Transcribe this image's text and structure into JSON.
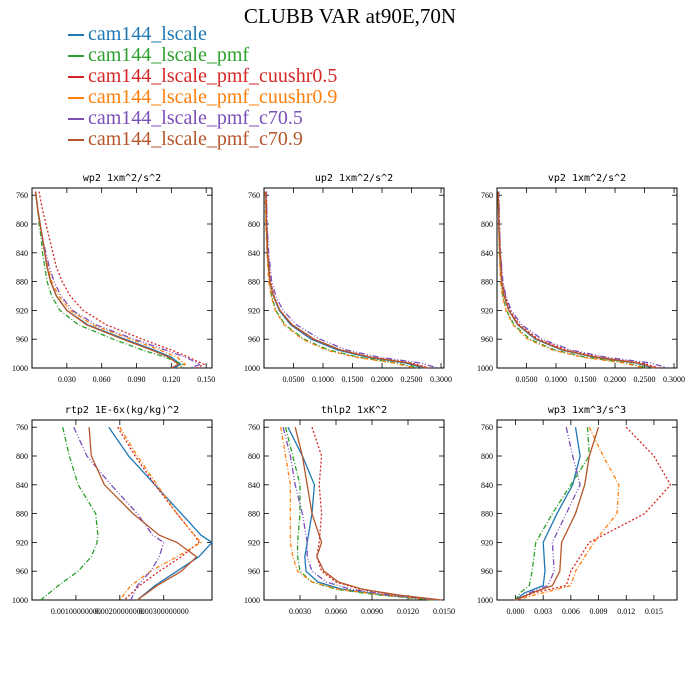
{
  "title": "CLUBB VAR at90E,70N",
  "legend": [
    {
      "name": "cam144_lscale",
      "color": "#1f77b4"
    },
    {
      "name": "cam144_lscale_pmf",
      "color": "#2ca02c"
    },
    {
      "name": "cam144_lscale_pmf_cuushr0.5",
      "color": "#d62728"
    },
    {
      "name": "cam144_lscale_pmf_cuushr0.9",
      "color": "#ff7f0e"
    },
    {
      "name": "cam144_lscale_pmf_c70.5",
      "color": "#7b4fb8"
    },
    {
      "name": "cam144_lscale_pmf_c70.9",
      "color": "#b5562a"
    }
  ],
  "chart_data": [
    {
      "type": "line",
      "title": "wp2  1xm^2/s^2",
      "xlim": [
        0.0,
        0.155
      ],
      "ylim": [
        1000,
        750
      ],
      "xticks": [
        0.03,
        0.06,
        0.09,
        0.12,
        0.15
      ],
      "xticklabels": [
        "0.030",
        "0.060",
        "0.090",
        "0.120",
        "0.150"
      ],
      "yticks": [
        760,
        800,
        840,
        880,
        920,
        960,
        1000
      ],
      "y": [
        755,
        780,
        800,
        820,
        840,
        860,
        880,
        900,
        920,
        940,
        960,
        975,
        985,
        995,
        1000
      ],
      "series": [
        {
          "name": "cam144_lscale",
          "values": [
            0.003,
            0.005,
            0.007,
            0.009,
            0.011,
            0.013,
            0.016,
            0.021,
            0.03,
            0.048,
            0.08,
            0.105,
            0.12,
            0.128,
            0.122
          ]
        },
        {
          "name": "cam144_lscale_pmf",
          "values": [
            0.003,
            0.005,
            0.006,
            0.008,
            0.009,
            0.011,
            0.013,
            0.017,
            0.024,
            0.04,
            0.07,
            0.095,
            0.115,
            0.13,
            0.128
          ]
        },
        {
          "name": "cam144_lscale_pmf_cuushr0.5",
          "values": [
            0.006,
            0.009,
            0.012,
            0.015,
            0.018,
            0.021,
            0.026,
            0.033,
            0.044,
            0.064,
            0.095,
            0.12,
            0.135,
            0.148,
            0.142
          ]
        },
        {
          "name": "cam144_lscale_pmf_cuushr0.9",
          "values": [
            0.003,
            0.005,
            0.007,
            0.009,
            0.011,
            0.014,
            0.017,
            0.023,
            0.033,
            0.052,
            0.085,
            0.11,
            0.125,
            0.132,
            0.126
          ]
        },
        {
          "name": "cam144_lscale_pmf_c70.5",
          "values": [
            0.003,
            0.005,
            0.007,
            0.009,
            0.012,
            0.015,
            0.019,
            0.025,
            0.035,
            0.055,
            0.088,
            0.115,
            0.132,
            0.145,
            0.136
          ]
        },
        {
          "name": "cam144_lscale_pmf_c70.9",
          "values": [
            0.003,
            0.005,
            0.007,
            0.009,
            0.011,
            0.013,
            0.016,
            0.021,
            0.03,
            0.047,
            0.078,
            0.103,
            0.118,
            0.126,
            0.12
          ]
        }
      ]
    },
    {
      "type": "line",
      "title": "up2  1xm^2/s^2",
      "xlim": [
        0.0,
        0.305
      ],
      "ylim": [
        1000,
        750
      ],
      "xticks": [
        0.05,
        0.1,
        0.15,
        0.2,
        0.25,
        0.3
      ],
      "xticklabels": [
        "0.0500",
        "0.1000",
        "0.1500",
        "0.2000",
        "0.2500",
        "0.3000"
      ],
      "yticks": [
        760,
        800,
        840,
        880,
        920,
        960,
        1000
      ],
      "y": [
        755,
        800,
        840,
        880,
        900,
        920,
        940,
        960,
        975,
        985,
        993,
        1000
      ],
      "series": [
        {
          "name": "cam144_lscale",
          "values": [
            0.003,
            0.004,
            0.006,
            0.01,
            0.016,
            0.026,
            0.045,
            0.08,
            0.125,
            0.175,
            0.24,
            0.27
          ]
        },
        {
          "name": "cam144_lscale_pmf",
          "values": [
            0.003,
            0.004,
            0.006,
            0.009,
            0.013,
            0.02,
            0.036,
            0.068,
            0.11,
            0.16,
            0.225,
            0.26
          ]
        },
        {
          "name": "cam144_lscale_pmf_cuushr0.5",
          "values": [
            0.004,
            0.005,
            0.007,
            0.011,
            0.017,
            0.027,
            0.047,
            0.083,
            0.13,
            0.182,
            0.25,
            0.28
          ]
        },
        {
          "name": "cam144_lscale_pmf_cuushr0.9",
          "values": [
            0.002,
            0.003,
            0.005,
            0.008,
            0.012,
            0.019,
            0.034,
            0.065,
            0.105,
            0.155,
            0.22,
            0.255
          ]
        },
        {
          "name": "cam144_lscale_pmf_c70.5",
          "values": [
            0.004,
            0.005,
            0.008,
            0.013,
            0.02,
            0.032,
            0.055,
            0.095,
            0.14,
            0.195,
            0.265,
            0.295
          ]
        },
        {
          "name": "cam144_lscale_pmf_c70.9",
          "values": [
            0.003,
            0.004,
            0.006,
            0.01,
            0.016,
            0.027,
            0.048,
            0.085,
            0.13,
            0.18,
            0.245,
            0.275
          ]
        }
      ]
    },
    {
      "type": "line",
      "title": "vp2  1xm^2/s^2",
      "xlim": [
        0.0,
        0.305
      ],
      "ylim": [
        1000,
        750
      ],
      "xticks": [
        0.05,
        0.1,
        0.15,
        0.2,
        0.25,
        0.3
      ],
      "xticklabels": [
        "0.0500",
        "0.1000",
        "0.1500",
        "0.2000",
        "0.2500",
        "0.3000"
      ],
      "yticks": [
        760,
        800,
        840,
        880,
        920,
        960,
        1000
      ],
      "y": [
        755,
        800,
        840,
        880,
        900,
        920,
        940,
        960,
        975,
        985,
        993,
        1000
      ],
      "series": [
        {
          "name": "cam144_lscale",
          "values": [
            0.002,
            0.003,
            0.005,
            0.008,
            0.012,
            0.02,
            0.035,
            0.065,
            0.11,
            0.165,
            0.235,
            0.265
          ]
        },
        {
          "name": "cam144_lscale_pmf",
          "values": [
            0.002,
            0.003,
            0.004,
            0.007,
            0.01,
            0.016,
            0.029,
            0.056,
            0.098,
            0.15,
            0.22,
            0.255
          ]
        },
        {
          "name": "cam144_lscale_pmf_cuushr0.5",
          "values": [
            0.003,
            0.004,
            0.006,
            0.009,
            0.014,
            0.022,
            0.038,
            0.07,
            0.118,
            0.175,
            0.245,
            0.275
          ]
        },
        {
          "name": "cam144_lscale_pmf_cuushr0.9",
          "values": [
            0.002,
            0.003,
            0.004,
            0.006,
            0.009,
            0.015,
            0.027,
            0.052,
            0.094,
            0.145,
            0.215,
            0.25
          ]
        },
        {
          "name": "cam144_lscale_pmf_c70.5",
          "values": [
            0.003,
            0.004,
            0.006,
            0.01,
            0.015,
            0.024,
            0.042,
            0.076,
            0.125,
            0.185,
            0.26,
            0.29
          ]
        },
        {
          "name": "cam144_lscale_pmf_c70.9",
          "values": [
            0.002,
            0.003,
            0.005,
            0.008,
            0.012,
            0.02,
            0.036,
            0.067,
            0.112,
            0.168,
            0.238,
            0.268
          ]
        }
      ]
    },
    {
      "type": "line",
      "title": "rtp2  1E-6x(kg/kg)^2",
      "xlim": [
        0.0,
        0.0041
      ],
      "ylim": [
        1000,
        750
      ],
      "xticks": [
        0.001,
        0.002,
        0.003
      ],
      "xticklabels": [
        "0.00100000000",
        "0.00200000000",
        "0.00300000000"
      ],
      "yticks": [
        760,
        800,
        840,
        880,
        920,
        960,
        1000
      ],
      "y": [
        760,
        800,
        840,
        880,
        910,
        920,
        940,
        960,
        980,
        1000
      ],
      "series": [
        {
          "name": "cam144_lscale",
          "values": [
            0.00175,
            0.0022,
            0.0028,
            0.0034,
            0.00385,
            0.0041,
            0.0038,
            0.0033,
            0.0028,
            0.0024
          ]
        },
        {
          "name": "cam144_lscale_pmf",
          "values": [
            0.0007,
            0.00085,
            0.00105,
            0.00145,
            0.0015,
            0.00148,
            0.00135,
            0.00105,
            0.0006,
            0.0002
          ]
        },
        {
          "name": "cam144_lscale_pmf_cuushr0.5",
          "values": [
            0.00195,
            0.00235,
            0.0028,
            0.0033,
            0.0037,
            0.0038,
            0.0034,
            0.0029,
            0.00245,
            0.0021
          ]
        },
        {
          "name": "cam144_lscale_pmf_cuushr0.9",
          "values": [
            0.002,
            0.0024,
            0.00285,
            0.0033,
            0.0037,
            0.00385,
            0.0033,
            0.0027,
            0.00225,
            0.002
          ]
        },
        {
          "name": "cam144_lscale_pmf_c70.5",
          "values": [
            0.00095,
            0.00125,
            0.0018,
            0.0024,
            0.00275,
            0.003,
            0.0029,
            0.0027,
            0.0024,
            0.00225
          ]
        },
        {
          "name": "cam144_lscale_pmf_c70.9",
          "values": [
            0.0013,
            0.00135,
            0.00165,
            0.0023,
            0.0029,
            0.0033,
            0.00375,
            0.0034,
            0.00285,
            0.0024
          ]
        }
      ]
    },
    {
      "type": "line",
      "title": "thlp2  1xK^2",
      "xlim": [
        0.0,
        0.015
      ],
      "ylim": [
        1000,
        750
      ],
      "xticks": [
        0.003,
        0.006,
        0.009,
        0.012,
        0.015
      ],
      "xticklabels": [
        "0.0030",
        "0.0060",
        "0.0090",
        "0.0120",
        "0.0150"
      ],
      "yticks": [
        760,
        800,
        840,
        880,
        920,
        960,
        1000
      ],
      "y": [
        760,
        800,
        840,
        880,
        920,
        940,
        960,
        975,
        985,
        993,
        1000
      ],
      "series": [
        {
          "name": "cam144_lscale",
          "values": [
            0.002,
            0.0032,
            0.0042,
            0.004,
            0.0036,
            0.0034,
            0.0035,
            0.0045,
            0.0065,
            0.01,
            0.0145
          ]
        },
        {
          "name": "cam144_lscale_pmf",
          "values": [
            0.0018,
            0.0024,
            0.003,
            0.003,
            0.0028,
            0.0028,
            0.003,
            0.004,
            0.006,
            0.0095,
            0.014
          ]
        },
        {
          "name": "cam144_lscale_pmf_cuushr0.5",
          "values": [
            0.004,
            0.0048,
            0.0046,
            0.0048,
            0.0046,
            0.0044,
            0.0048,
            0.006,
            0.008,
            0.011,
            0.0148
          ]
        },
        {
          "name": "cam144_lscale_pmf_cuushr0.9",
          "values": [
            0.0014,
            0.0018,
            0.0022,
            0.0022,
            0.0022,
            0.0024,
            0.0028,
            0.004,
            0.0062,
            0.01,
            0.0142
          ]
        },
        {
          "name": "cam144_lscale_pmf_c70.5",
          "values": [
            0.0016,
            0.0022,
            0.0026,
            0.0032,
            0.0036,
            0.0036,
            0.004,
            0.0052,
            0.0072,
            0.0105,
            0.0146
          ]
        },
        {
          "name": "cam144_lscale_pmf_c70.9",
          "values": [
            0.0026,
            0.0032,
            0.0036,
            0.004,
            0.0048,
            0.0044,
            0.005,
            0.0062,
            0.0082,
            0.0112,
            0.0148
          ]
        }
      ]
    },
    {
      "type": "line",
      "title": "wp3  1xm^3/s^3",
      "xlim": [
        -0.002,
        0.0175
      ],
      "ylim": [
        1000,
        750
      ],
      "xticks": [
        0.0,
        0.003,
        0.006,
        0.009,
        0.012,
        0.015
      ],
      "xticklabels": [
        "0.000",
        "0.003",
        "0.006",
        "0.009",
        "0.012",
        "0.015"
      ],
      "yticks": [
        760,
        800,
        840,
        880,
        920,
        960,
        1000
      ],
      "y": [
        760,
        800,
        840,
        880,
        920,
        960,
        980,
        990,
        1000
      ],
      "series": [
        {
          "name": "cam144_lscale",
          "values": [
            0.0065,
            0.007,
            0.0062,
            0.0045,
            0.003,
            0.0032,
            0.003,
            0.001,
            0.0
          ]
        },
        {
          "name": "cam144_lscale_pmf",
          "values": [
            0.0078,
            0.008,
            0.006,
            0.004,
            0.0022,
            0.0018,
            0.0015,
            0.0005,
            0.0
          ]
        },
        {
          "name": "cam144_lscale_pmf_cuushr0.5",
          "values": [
            0.012,
            0.015,
            0.0168,
            0.014,
            0.008,
            0.006,
            0.0055,
            0.002,
            0.0
          ]
        },
        {
          "name": "cam144_lscale_pmf_cuushr0.9",
          "values": [
            0.008,
            0.0095,
            0.0112,
            0.011,
            0.0085,
            0.0065,
            0.006,
            0.003,
            0.0
          ]
        },
        {
          "name": "cam144_lscale_pmf_c70.5",
          "values": [
            0.0055,
            0.0062,
            0.007,
            0.0055,
            0.004,
            0.0042,
            0.0035,
            0.0015,
            0.0
          ]
        },
        {
          "name": "cam144_lscale_pmf_c70.9",
          "values": [
            0.009,
            0.008,
            0.0075,
            0.0065,
            0.005,
            0.0048,
            0.004,
            0.0018,
            0.0
          ]
        }
      ]
    }
  ]
}
